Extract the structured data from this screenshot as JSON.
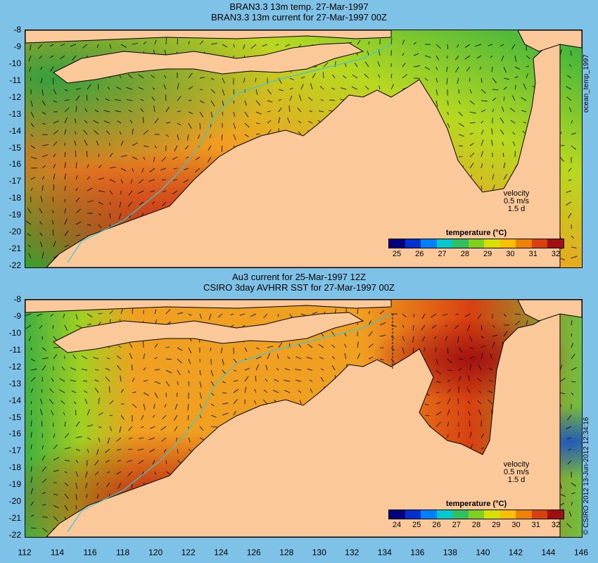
{
  "top": {
    "title_line1": "BRAN3.3 13m temp. 27-Mar-1997",
    "title_line2": "BRAN3.3 13m current for 27-Mar-1997 00Z",
    "velocity_label": "velocity",
    "velocity_value": "0.5 m/s",
    "velocity_time": "1.5 d",
    "colorbar_title": "temperature (°C)",
    "colorbar_ticks": [
      "25",
      "26",
      "27",
      "28",
      "29",
      "30",
      "31",
      "32"
    ],
    "side_label": "ocean_temp_1997"
  },
  "bottom": {
    "title_line1": "Au3 current for 25-Mar-1997 12Z",
    "title_line2": "CSIRO 3day AVHRR SST for 27-Mar-1997 00Z",
    "velocity_label": "velocity",
    "velocity_value": "0.5 m/s",
    "velocity_time": "1.5 d",
    "colorbar_title": "temperature (°C)",
    "colorbar_ticks": [
      "24",
      "25",
      "26",
      "27",
      "28",
      "29",
      "30",
      "31",
      "32"
    ],
    "side_label": "© CSIRO 2012  13-Jun-2012 12:34:16"
  },
  "latitude_ticks": [
    "-8",
    "-9",
    "-10",
    "-11",
    "-12",
    "-13",
    "-14",
    "-15",
    "-16",
    "-17",
    "-18",
    "-19",
    "-20",
    "-21",
    "-22"
  ],
  "longitude_ticks": [
    "112",
    "114",
    "116",
    "118",
    "120",
    "122",
    "124",
    "126",
    "128",
    "130",
    "132",
    "134",
    "136",
    "138",
    "140",
    "142",
    "144",
    "146"
  ],
  "colors": {
    "background": "#7ec2e8",
    "land": "#fbc89a",
    "warm": "#c8281e",
    "mid": "#f0a020",
    "cool": "#2aa830",
    "cold": "#1a50c8",
    "isobath": "#39c8d8"
  },
  "colorbar_colors": [
    "#000080",
    "#0030d0",
    "#0080ff",
    "#00c8d0",
    "#30c060",
    "#80d020",
    "#d8e000",
    "#f8c000",
    "#f08000",
    "#d84010",
    "#a01010"
  ]
}
